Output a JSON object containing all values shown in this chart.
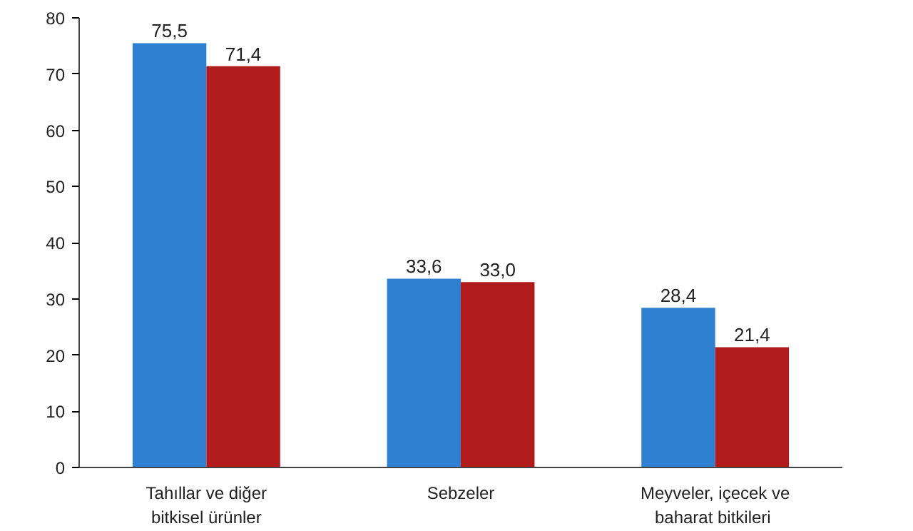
{
  "chart_data": {
    "type": "bar",
    "categories": [
      "Tahıllar ve diğer\nbitkisel ürünler",
      "Sebzeler",
      "Meyveler, içecek ve\nbaharat  bitkileri"
    ],
    "series": [
      {
        "color": "#2f80d1",
        "values": [
          75.5,
          33.6,
          28.4
        ],
        "value_labels": [
          "75,5",
          "33,6",
          "28,4"
        ]
      },
      {
        "color": "#b01c1c",
        "values": [
          71.4,
          33.0,
          21.4
        ],
        "value_labels": [
          "71,4",
          "33,0",
          "21,4"
        ]
      }
    ],
    "ylim": [
      0,
      80
    ],
    "yticks": [
      0,
      10,
      20,
      30,
      40,
      50,
      60,
      70,
      80
    ],
    "grid": false
  }
}
